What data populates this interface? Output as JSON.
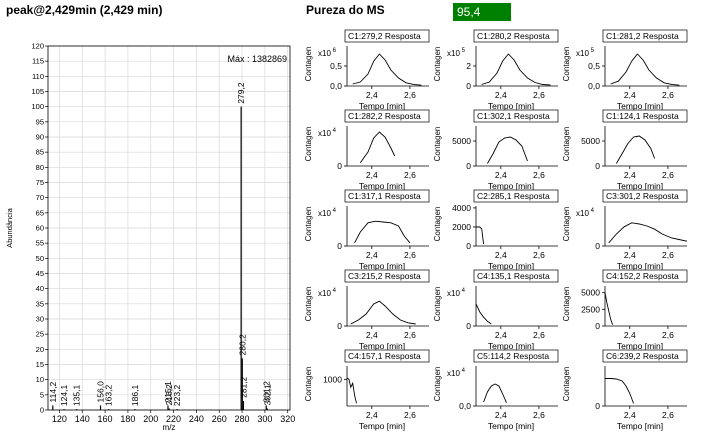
{
  "header": {
    "peak_title": "peak@2,429min (2,429 min)",
    "purity_label": "Pureza do MS",
    "purity_value": "95,4",
    "purity_color": "#008000"
  },
  "chart_data": [
    {
      "type": "bar",
      "title": "",
      "xlabel": "m/z",
      "ylabel": "Abundância",
      "annotation": "Máx : 1382869",
      "xlim": [
        110,
        322
      ],
      "ylim": [
        0,
        120
      ],
      "xticks": [
        "120",
        "140",
        "160",
        "180",
        "200",
        "220",
        "240",
        "260",
        "280",
        "300",
        "320"
      ],
      "yticks": [
        "0",
        "5",
        "10",
        "15",
        "20",
        "25",
        "30",
        "35",
        "40",
        "45",
        "50",
        "55",
        "60",
        "65",
        "70",
        "75",
        "80",
        "85",
        "90",
        "95",
        "100",
        "105",
        "110",
        "115",
        "120"
      ],
      "grid": true,
      "peaks": [
        {
          "mz": 114.2,
          "value": 1.5,
          "label": "114,2"
        },
        {
          "mz": 124.1,
          "value": 0.3,
          "label": "124,1"
        },
        {
          "mz": 135.1,
          "value": 0.3,
          "label": "135,1"
        },
        {
          "mz": 156.0,
          "value": 1.5,
          "label": "156,0"
        },
        {
          "mz": 163.2,
          "value": 0.3,
          "label": "163,2"
        },
        {
          "mz": 186.1,
          "value": 0.3,
          "label": "186,1"
        },
        {
          "mz": 215.1,
          "value": 1.5,
          "label": "215,1"
        },
        {
          "mz": 216.2,
          "value": 0.5,
          "label": "216,2"
        },
        {
          "mz": 223.2,
          "value": 0.3,
          "label": "223,2"
        },
        {
          "mz": 279.2,
          "value": 100,
          "label": "279,2"
        },
        {
          "mz": 280.2,
          "value": 17,
          "label": "280,2"
        },
        {
          "mz": 281.2,
          "value": 3,
          "label": "281,2"
        },
        {
          "mz": 301.2,
          "value": 1.5,
          "label": "301,2"
        },
        {
          "mz": 302.1,
          "value": 0.5,
          "label": "302,1"
        }
      ]
    },
    {
      "type": "line",
      "title": "C1:279,2 Resposta",
      "ylabel": "Contagen",
      "multiplier": "x10 6",
      "yticks": [
        "0,0",
        "0,5"
      ],
      "ylim": [
        0,
        1
      ],
      "xlabel": "Tempo [min]",
      "xticks": [
        "2,4",
        "2,6"
      ],
      "xlim": [
        2.27,
        2.7
      ],
      "x": [
        2.3,
        2.34,
        2.38,
        2.41,
        2.44,
        2.47,
        2.5,
        2.54,
        2.58,
        2.62,
        2.66
      ],
      "values": [
        0.05,
        0.1,
        0.3,
        0.62,
        0.8,
        0.65,
        0.4,
        0.2,
        0.08,
        0.04,
        0.02
      ]
    },
    {
      "type": "line",
      "title": "C1:280,2 Resposta",
      "ylabel": "Contagen",
      "multiplier": "x10 5",
      "yticks": [
        "0",
        "2"
      ],
      "ylim": [
        0,
        4
      ],
      "xlabel": "Tempo [min]",
      "xticks": [
        "2,4",
        "2,6"
      ],
      "xlim": [
        2.27,
        2.7
      ],
      "x": [
        2.3,
        2.34,
        2.38,
        2.41,
        2.44,
        2.47,
        2.5,
        2.54,
        2.58,
        2.62,
        2.66
      ],
      "values": [
        0.15,
        0.4,
        1.3,
        2.5,
        3.2,
        2.6,
        1.6,
        0.8,
        0.35,
        0.15,
        0.1
      ]
    },
    {
      "type": "line",
      "title": "C1:281,2 Resposta",
      "ylabel": "Contagen",
      "multiplier": "x10 5",
      "yticks": [
        "0,0",
        "0,5"
      ],
      "ylim": [
        0,
        1
      ],
      "xlabel": "Tempo [min]",
      "xticks": [
        "2,4",
        "2,6"
      ],
      "xlim": [
        2.27,
        2.7
      ],
      "x": [
        2.3,
        2.34,
        2.38,
        2.41,
        2.44,
        2.47,
        2.5,
        2.54,
        2.58,
        2.62,
        2.66
      ],
      "values": [
        0.05,
        0.12,
        0.35,
        0.62,
        0.8,
        0.65,
        0.4,
        0.2,
        0.08,
        0.04,
        0.02
      ]
    },
    {
      "type": "line",
      "title": "C1:282,2 Resposta",
      "ylabel": "Contagen",
      "multiplier": "x10 4",
      "yticks": [
        "0"
      ],
      "ylim": [
        0,
        1
      ],
      "xlabel": "Tempo [min]",
      "xticks": [
        "2,4",
        "2,6"
      ],
      "xlim": [
        2.27,
        2.7
      ],
      "x": [
        2.34,
        2.38,
        2.41,
        2.44,
        2.47,
        2.5,
        2.52
      ],
      "values": [
        0.08,
        0.35,
        0.7,
        0.85,
        0.72,
        0.45,
        0.25
      ]
    },
    {
      "type": "line",
      "title": "C1:302,1 Resposta",
      "ylabel": "Contagen",
      "multiplier": "",
      "yticks": [
        "0",
        "5000"
      ],
      "ylim": [
        0,
        8000
      ],
      "xlabel": "Tempo [min]",
      "xticks": [
        "2,4",
        "2,6"
      ],
      "xlim": [
        2.27,
        2.7
      ],
      "x": [
        2.33,
        2.36,
        2.39,
        2.42,
        2.45,
        2.48,
        2.51,
        2.54
      ],
      "values": [
        500,
        2500,
        4800,
        5600,
        5800,
        5200,
        4000,
        1000
      ]
    },
    {
      "type": "line",
      "title": "C1:124,1 Resposta",
      "ylabel": "Contagen",
      "multiplier": "",
      "yticks": [
        "0",
        "5000"
      ],
      "ylim": [
        0,
        8000
      ],
      "xlabel": "Tempo [min]",
      "xticks": [
        "2,4",
        "2,6"
      ],
      "xlim": [
        2.27,
        2.7
      ],
      "x": [
        2.33,
        2.36,
        2.39,
        2.42,
        2.45,
        2.48,
        2.51,
        2.53
      ],
      "values": [
        500,
        2500,
        4500,
        5800,
        6000,
        5200,
        3500,
        1500
      ]
    },
    {
      "type": "line",
      "title": "C1:317,1 Resposta",
      "ylabel": "Contagen",
      "multiplier": "x10 4",
      "yticks": [
        "0"
      ],
      "ylim": [
        0,
        1
      ],
      "xlabel": "Tempo [min]",
      "xticks": [
        "2,4",
        "2,6"
      ],
      "xlim": [
        2.27,
        2.7
      ],
      "x": [
        2.31,
        2.34,
        2.38,
        2.42,
        2.46,
        2.5,
        2.54,
        2.57,
        2.6
      ],
      "values": [
        0.08,
        0.35,
        0.58,
        0.62,
        0.6,
        0.58,
        0.5,
        0.25,
        0.08
      ]
    },
    {
      "type": "line",
      "title": "C2:285,1 Resposta",
      "ylabel": "Contagen",
      "multiplier": "",
      "yticks": [
        "0",
        "2000",
        "4000"
      ],
      "ylim": [
        0,
        4200
      ],
      "xlabel": "Tempo [min]",
      "xticks": [
        "2,4",
        "2,6"
      ],
      "xlim": [
        2.27,
        2.7
      ],
      "x": [
        2.27,
        2.29,
        2.3,
        2.31
      ],
      "values": [
        2000,
        2000,
        1800,
        200
      ]
    },
    {
      "type": "line",
      "title": "C3:301,2 Resposta",
      "ylabel": "Contagen",
      "multiplier": "x10 4",
      "yticks": [
        "0"
      ],
      "ylim": [
        0,
        1
      ],
      "xlabel": "Tempo [min]",
      "xticks": [
        "2,4",
        "2,6"
      ],
      "xlim": [
        2.27,
        2.7
      ],
      "x": [
        2.29,
        2.33,
        2.37,
        2.41,
        2.45,
        2.49,
        2.53,
        2.57,
        2.62,
        2.67,
        2.7
      ],
      "values": [
        0.08,
        0.3,
        0.48,
        0.58,
        0.55,
        0.5,
        0.42,
        0.3,
        0.2,
        0.15,
        0.12
      ]
    },
    {
      "type": "line",
      "title": "C3:215,2 Resposta",
      "ylabel": "Contagen",
      "multiplier": "x10 4",
      "yticks": [
        "0"
      ],
      "ylim": [
        0,
        1
      ],
      "xlabel": "Tempo [min]",
      "xticks": [
        "2,4",
        "2,6"
      ],
      "xlim": [
        2.27,
        2.7
      ],
      "x": [
        2.29,
        2.33,
        2.37,
        2.41,
        2.44,
        2.47,
        2.51,
        2.55,
        2.59,
        2.63
      ],
      "values": [
        0.05,
        0.15,
        0.3,
        0.55,
        0.62,
        0.5,
        0.3,
        0.15,
        0.08,
        0.05
      ]
    },
    {
      "type": "line",
      "title": "C4:135,1 Resposta",
      "ylabel": "Contagen",
      "multiplier": "x10 4",
      "yticks": [
        "0"
      ],
      "ylim": [
        0,
        1
      ],
      "xlabel": "Tempo [min]",
      "xticks": [
        "2,4",
        "2,6"
      ],
      "xlim": [
        2.27,
        2.7
      ],
      "x": [
        2.27,
        2.29,
        2.31,
        2.33,
        2.35
      ],
      "values": [
        0.55,
        0.35,
        0.22,
        0.12,
        0.05
      ]
    },
    {
      "type": "line",
      "title": "C4:152,2 Resposta",
      "ylabel": "Contagen",
      "multiplier": "",
      "yticks": [
        "0",
        "2500",
        "5000"
      ],
      "ylim": [
        0,
        6000
      ],
      "xlabel": "Tempo [min]",
      "xticks": [
        "2,4",
        "2,6"
      ],
      "xlim": [
        2.27,
        2.7
      ],
      "x": [
        2.27,
        2.28,
        2.29,
        2.3,
        2.31
      ],
      "values": [
        5000,
        3500,
        2200,
        1000,
        200
      ]
    },
    {
      "type": "line",
      "title": "C4:157,1 Resposta",
      "ylabel": "Contagen",
      "multiplier": "",
      "yticks": [
        "1000"
      ],
      "ylim": [
        0,
        1500
      ],
      "xlabel": "Tempo [min]",
      "xticks": [
        "2,4",
        "2,6"
      ],
      "xlim": [
        2.27,
        2.7
      ],
      "x": [
        2.27,
        2.28,
        2.29,
        2.3,
        2.31,
        2.32
      ],
      "values": [
        1050,
        1000,
        700,
        850,
        400,
        100
      ]
    },
    {
      "type": "line",
      "title": "C5:114,2 Resposta",
      "ylabel": "Contagen",
      "multiplier": "x10 4",
      "yticks": [
        "0,0"
      ],
      "ylim": [
        0,
        1
      ],
      "xlabel": "Tempo [min]",
      "xticks": [
        "2,4",
        "2,6"
      ],
      "xlim": [
        2.27,
        2.7
      ],
      "x": [
        2.31,
        2.33,
        2.35,
        2.37,
        2.39,
        2.41,
        2.43
      ],
      "values": [
        0.1,
        0.35,
        0.5,
        0.55,
        0.5,
        0.3,
        0.08
      ]
    },
    {
      "type": "line",
      "title": "C6:239,2 Resposta",
      "ylabel": "Contagen",
      "multiplier": "",
      "yticks": [
        "0"
      ],
      "ylim": [
        0,
        8000
      ],
      "xlabel": "Tempo [min]",
      "xticks": [
        "2,4",
        "2,6"
      ],
      "xlim": [
        2.27,
        2.7
      ],
      "x": [
        2.27,
        2.3,
        2.33,
        2.36,
        2.38,
        2.4,
        2.42
      ],
      "values": [
        5500,
        5500,
        5400,
        5000,
        4000,
        2500,
        500
      ]
    }
  ]
}
